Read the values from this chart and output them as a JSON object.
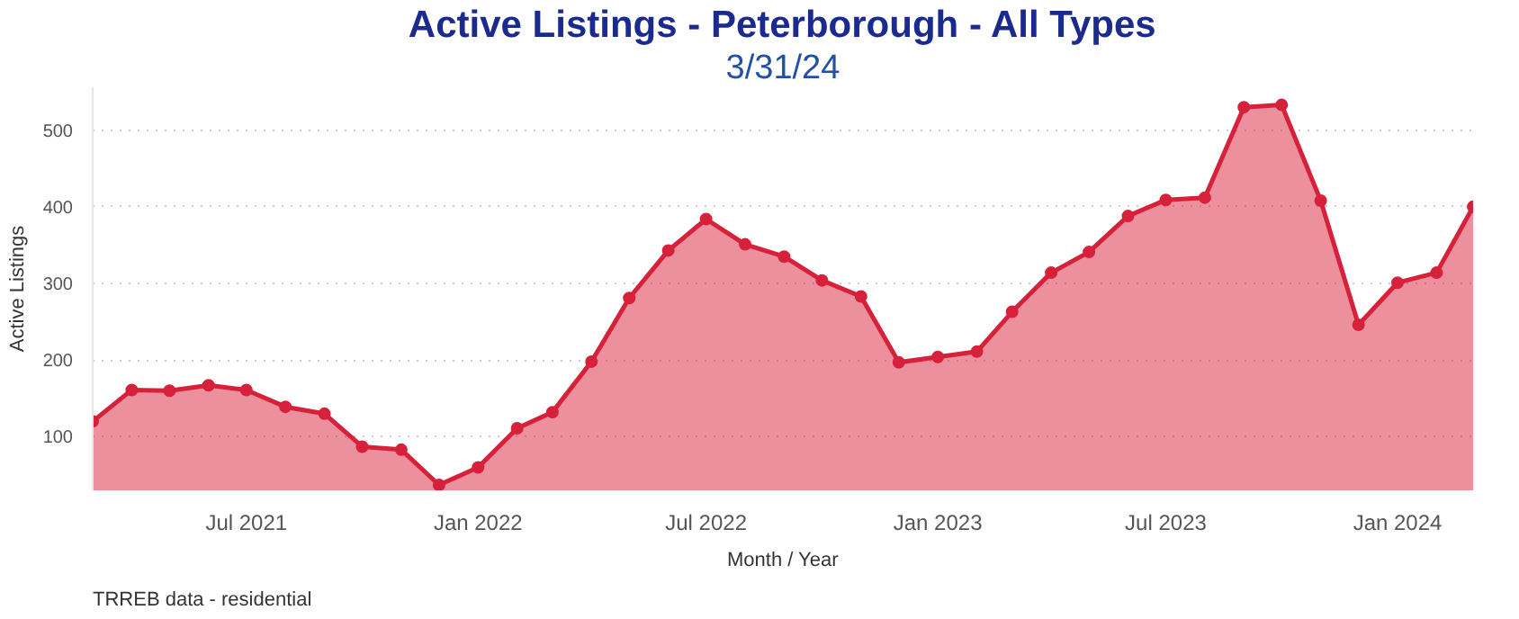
{
  "chart_data": {
    "type": "area",
    "title": "Active Listings - Peterborough - All Types",
    "subtitle": "3/31/24",
    "xlabel": "Month / Year",
    "ylabel": "Active Listings",
    "annotations": [
      "TRREB data - residential"
    ],
    "x": [
      "2021-03",
      "2021-04",
      "2021-05",
      "2021-06",
      "2021-07",
      "2021-08",
      "2021-09",
      "2021-10",
      "2021-11",
      "2021-12",
      "2022-01",
      "2022-02",
      "2022-03",
      "2022-04",
      "2022-05",
      "2022-06",
      "2022-07",
      "2022-08",
      "2022-09",
      "2022-10",
      "2022-11",
      "2022-12",
      "2023-01",
      "2023-02",
      "2023-03",
      "2023-04",
      "2023-05",
      "2023-06",
      "2023-07",
      "2023-08",
      "2023-09",
      "2023-10",
      "2023-11",
      "2023-12",
      "2024-01",
      "2024-02",
      "2024-03"
    ],
    "series": [
      {
        "color": "#d7213a",
        "values": [
          120,
          161,
          160,
          167,
          161,
          139,
          130,
          87,
          83,
          37,
          60,
          111,
          132,
          198,
          281,
          343,
          384,
          351,
          335,
          304,
          283,
          197,
          204,
          211,
          263,
          314,
          341,
          388,
          409,
          412,
          530,
          533,
          408,
          246,
          301,
          314,
          400
        ]
      }
    ],
    "xlim": [
      "2021-03",
      "2024-03"
    ],
    "xticks": [
      {
        "value": "2021-07",
        "label": "Jul 2021"
      },
      {
        "value": "2022-01",
        "label": "Jan 2022"
      },
      {
        "value": "2022-07",
        "label": "Jul 2022"
      },
      {
        "value": "2023-01",
        "label": "Jan 2023"
      },
      {
        "value": "2023-07",
        "label": "Jul 2023"
      },
      {
        "value": "2024-01",
        "label": "Jan 2024"
      }
    ],
    "ylim": [
      30,
      556
    ],
    "yticks": [
      100,
      200,
      300,
      400,
      500
    ],
    "grid": "y",
    "marker": "circle",
    "line_style": "solid"
  }
}
